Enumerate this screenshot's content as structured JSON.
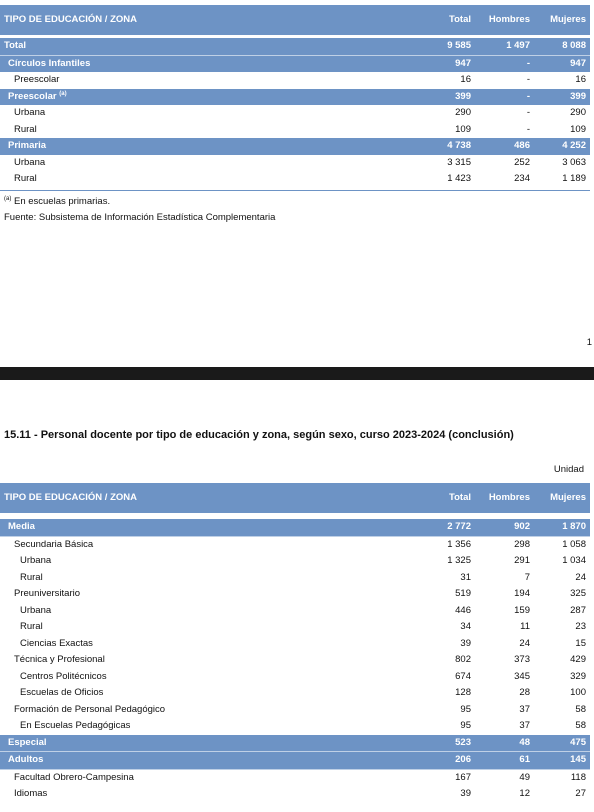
{
  "table1": {
    "header": {
      "label": "TIPO DE EDUCACIÓN / ZONA",
      "total": "Total",
      "hombres": "Hombres",
      "mujeres": "Mujeres"
    },
    "rows": [
      {
        "label": "Total",
        "total": "9 585",
        "hombres": "1 497",
        "mujeres": "8 088"
      },
      {
        "label": "Círculos Infantiles",
        "total": "947",
        "hombres": "-",
        "mujeres": "947"
      },
      {
        "label": "Preescolar",
        "total": "16",
        "hombres": "-",
        "mujeres": "16"
      },
      {
        "label": "Preescolar",
        "sup": "(a)",
        "total": "399",
        "hombres": "-",
        "mujeres": "399"
      },
      {
        "label": "Urbana",
        "total": "290",
        "hombres": "-",
        "mujeres": "290"
      },
      {
        "label": "Rural",
        "total": "109",
        "hombres": "-",
        "mujeres": "109"
      },
      {
        "label": "Primaria",
        "total": "4 738",
        "hombres": "486",
        "mujeres": "4 252"
      },
      {
        "label": "Urbana",
        "total": "3 315",
        "hombres": "252",
        "mujeres": "3 063"
      },
      {
        "label": "Rural",
        "total": "1 423",
        "hombres": "234",
        "mujeres": "1 189"
      }
    ],
    "footnote_mark": "(a)",
    "footnote": "En escuelas primarias.",
    "source": "Fuente: Subsistema de Información Estadística Complementaria"
  },
  "page_number": "1",
  "table2": {
    "title": "15.11 - Personal docente por tipo de educación y zona, según sexo, curso 2023-2024 (conclusión)",
    "unit": "Unidad",
    "header": {
      "label": "TIPO DE EDUCACIÓN / ZONA",
      "total": "Total",
      "hombres": "Hombres",
      "mujeres": "Mujeres"
    },
    "rows": [
      {
        "label": "Media",
        "total": "2 772",
        "hombres": "902",
        "mujeres": "1 870"
      },
      {
        "label": "Secundaria Básica",
        "total": "1 356",
        "hombres": "298",
        "mujeres": "1 058"
      },
      {
        "label": "Urbana",
        "total": "1 325",
        "hombres": "291",
        "mujeres": "1 034"
      },
      {
        "label": "Rural",
        "total": "31",
        "hombres": "7",
        "mujeres": "24"
      },
      {
        "label": "Preuniversitario",
        "total": "519",
        "hombres": "194",
        "mujeres": "325"
      },
      {
        "label": "Urbana",
        "total": "446",
        "hombres": "159",
        "mujeres": "287"
      },
      {
        "label": "Rural",
        "total": "34",
        "hombres": "11",
        "mujeres": "23"
      },
      {
        "label": "Ciencias Exactas",
        "total": "39",
        "hombres": "24",
        "mujeres": "15"
      },
      {
        "label": "Técnica y Profesional",
        "total": "802",
        "hombres": "373",
        "mujeres": "429"
      },
      {
        "label": "Centros Politécnicos",
        "total": "674",
        "hombres": "345",
        "mujeres": "329"
      },
      {
        "label": "Escuelas de Oficios",
        "total": "128",
        "hombres": "28",
        "mujeres": "100"
      },
      {
        "label": "Formación de Personal Pedagógico",
        "total": "95",
        "hombres": "37",
        "mujeres": "58"
      },
      {
        "label": "En Escuelas Pedagógicas",
        "total": "95",
        "hombres": "37",
        "mujeres": "58"
      },
      {
        "label": "Especial",
        "total": "523",
        "hombres": "48",
        "mujeres": "475"
      },
      {
        "label": "Adultos",
        "total": "206",
        "hombres": "61",
        "mujeres": "145"
      },
      {
        "label": "Facultad Obrero-Campesina",
        "total": "167",
        "hombres": "49",
        "mujeres": "118"
      },
      {
        "label": "Idiomas",
        "total": "39",
        "hombres": "12",
        "mujeres": "27"
      }
    ]
  }
}
